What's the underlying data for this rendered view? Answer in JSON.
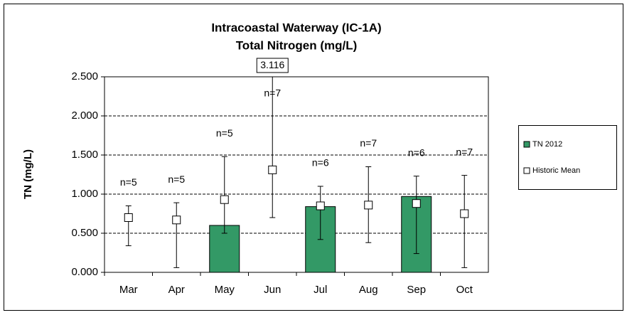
{
  "chart_data": {
    "type": "bar",
    "title": "Intracoastal Waterway (IC-1A)",
    "subtitle": "Total Nitrogen (mg/L)",
    "y_label": "TN (mg/L)",
    "categories": [
      "Mar",
      "Apr",
      "May",
      "Jun",
      "Jul",
      "Aug",
      "Sep",
      "Oct"
    ],
    "series": [
      {
        "name": "TN 2012",
        "color": "#339966",
        "values": [
          null,
          null,
          0.6,
          null,
          0.84,
          null,
          0.97,
          null
        ]
      },
      {
        "name": "Historic Mean",
        "color": "#ffffff",
        "values": [
          0.7,
          0.67,
          0.93,
          1.31,
          0.85,
          0.86,
          0.88,
          0.75
        ],
        "min": [
          0.34,
          0.06,
          0.5,
          0.7,
          0.42,
          0.38,
          0.24,
          0.06
        ],
        "max": [
          0.85,
          0.89,
          1.48,
          3.116,
          1.1,
          1.35,
          1.23,
          1.24
        ]
      }
    ],
    "n_labels": [
      "n=5",
      "n=5",
      "n=5",
      "n=7",
      "n=6",
      "n=7",
      "n=6",
      "n=7"
    ],
    "ylim": [
      0,
      2.5
    ],
    "yticks": [
      {
        "value": 0,
        "label": "0.000"
      },
      {
        "value": 0.5,
        "label": "0.500"
      },
      {
        "value": 1,
        "label": "1.000"
      },
      {
        "value": 1.5,
        "label": "1.500"
      },
      {
        "value": 2,
        "label": "2.000"
      },
      {
        "value": 2.5,
        "label": "2.500"
      }
    ],
    "grid": true,
    "legend": "right"
  }
}
